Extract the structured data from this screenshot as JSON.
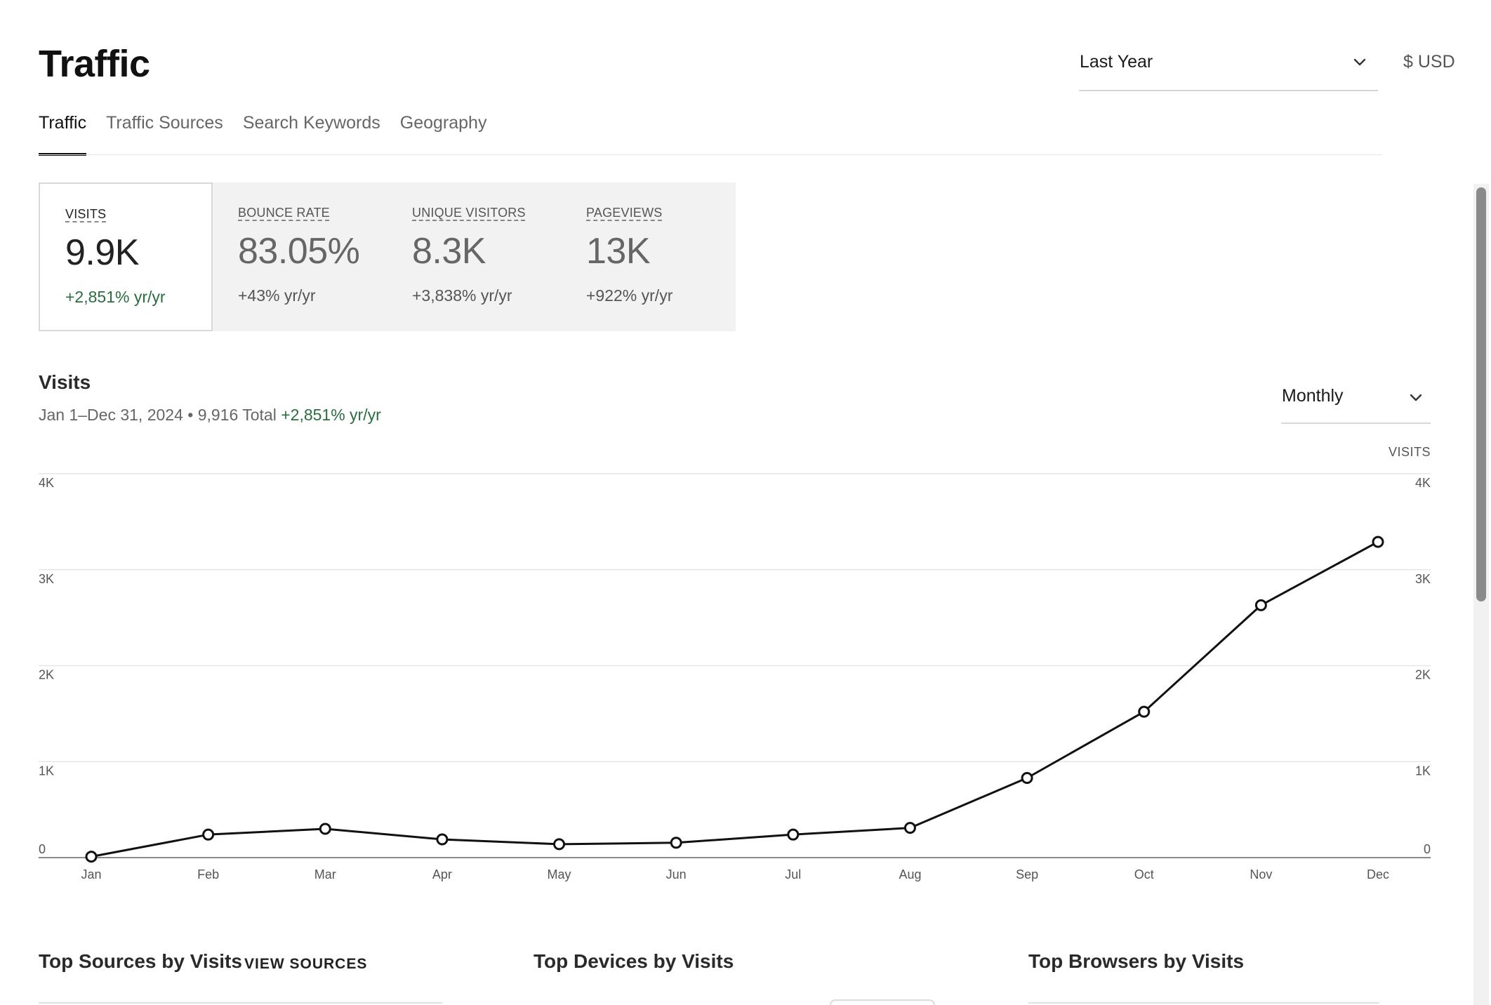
{
  "page": {
    "title": "Traffic"
  },
  "range_select": {
    "value": "Last Year"
  },
  "currency": "$ USD",
  "tabs": [
    {
      "label": "Traffic",
      "active": true
    },
    {
      "label": "Traffic Sources",
      "active": false
    },
    {
      "label": "Search Keywords",
      "active": false
    },
    {
      "label": "Geography",
      "active": false
    }
  ],
  "metrics": [
    {
      "label": "VISITS",
      "value": "9.9K",
      "change": "+2,851% yr/yr",
      "active": true
    },
    {
      "label": "BOUNCE RATE",
      "value": "83.05%",
      "change": "+43% yr/yr",
      "active": false
    },
    {
      "label": "UNIQUE VISITORS",
      "value": "8.3K",
      "change": "+3,838% yr/yr",
      "active": false
    },
    {
      "label": "PAGEVIEWS",
      "value": "13K",
      "change": "+922% yr/yr",
      "active": false
    }
  ],
  "visits_panel": {
    "title": "Visits",
    "subtitle": "Jan 1–Dec 31, 2024 • 9,916 Total",
    "subtitle_change": "+2,851% yr/yr",
    "interval": "Monthly"
  },
  "chart_data": {
    "type": "line",
    "categories": [
      "Jan",
      "Feb",
      "Mar",
      "Apr",
      "May",
      "Jun",
      "Jul",
      "Aug",
      "Sep",
      "Oct",
      "Nov",
      "Dec"
    ],
    "series": [
      {
        "name": "VISITS",
        "values": [
          10,
          240,
          300,
          190,
          140,
          155,
          240,
          310,
          830,
          1520,
          2630,
          3290
        ]
      }
    ],
    "y_ticks": [
      "0",
      "1K",
      "2K",
      "3K",
      "4K"
    ],
    "ylim": [
      0,
      4000
    ],
    "right_axis_label": "VISITS",
    "grid": true,
    "colors": {
      "line": "#111111",
      "grid": "#e6e6e6",
      "axis": "#8a8a8a"
    }
  },
  "sections": {
    "top_sources": {
      "title": "Top Sources by Visits",
      "action": "VIEW SOURCES"
    },
    "top_devices": {
      "title": "Top Devices by Visits"
    },
    "top_browsers": {
      "title": "Top Browsers by Visits"
    }
  }
}
